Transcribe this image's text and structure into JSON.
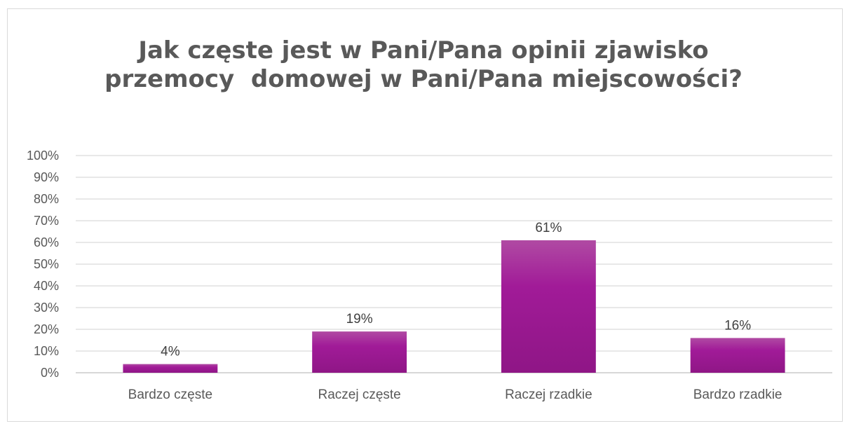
{
  "chart_data": {
    "type": "bar",
    "title_lines": [
      "Jak częste jest w Pani/Pana opinii zjawisko",
      "przemocy  domowej w Pani/Pana miejscowości?"
    ],
    "categories": [
      "Bardzo częste",
      "Raczej częste",
      "Raczej rzadkie",
      "Bardzo rzadkie"
    ],
    "values": [
      4,
      19,
      61,
      16
    ],
    "data_labels": [
      "4%",
      "19%",
      "61%",
      "16%"
    ],
    "y_ticks": [
      "0%",
      "10%",
      "20%",
      "30%",
      "40%",
      "50%",
      "60%",
      "70%",
      "80%",
      "90%",
      "100%"
    ],
    "ylim": [
      0,
      100
    ],
    "xlabel": "",
    "ylabel": "",
    "grid": true,
    "legend": "none",
    "colors": {
      "bar_top": "#b04aa3",
      "bar_bottom": "#8f1686",
      "bar_mid": "#a11b98",
      "grid": "#d9d9d9",
      "axis": "#bfbfbf",
      "text": "#595959"
    }
  }
}
